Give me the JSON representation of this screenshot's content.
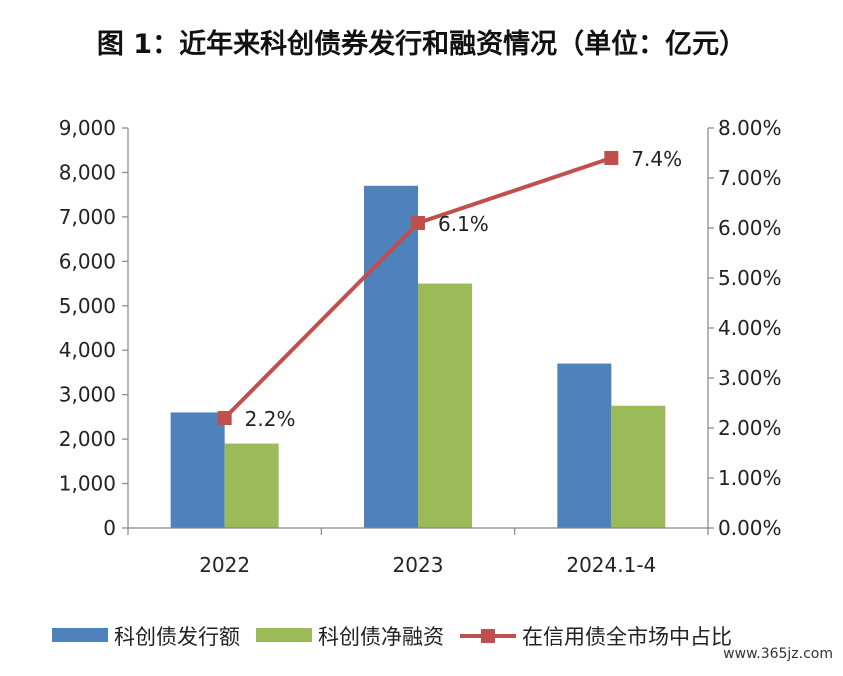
{
  "chart_data": {
    "type": "bar",
    "title": "图 1：近年来科创债券发行和融资情况（单位：亿元）",
    "categories": [
      "2022",
      "2023",
      "2024.1-4"
    ],
    "series": [
      {
        "name": "科创债发行额",
        "type": "bar",
        "axis": "left",
        "color": "#4f81bd",
        "values": [
          2600,
          7700,
          3700
        ]
      },
      {
        "name": "科创债净融资",
        "type": "bar",
        "axis": "left",
        "color": "#9bbb59",
        "values": [
          1900,
          5500,
          2750
        ]
      },
      {
        "name": "在信用债全市场中占比",
        "type": "line",
        "axis": "right",
        "color": "#c0504d",
        "values": [
          0.022,
          0.061,
          0.074
        ],
        "data_labels": [
          "2.2%",
          "6.1%",
          "7.4%"
        ]
      }
    ],
    "y_left": {
      "lim": [
        0,
        9000
      ],
      "ticks": [
        0,
        1000,
        2000,
        3000,
        4000,
        5000,
        6000,
        7000,
        8000,
        9000
      ],
      "tick_labels": [
        "0",
        "1,000",
        "2,000",
        "3,000",
        "4,000",
        "5,000",
        "6,000",
        "7,000",
        "8,000",
        "9,000"
      ]
    },
    "y_right": {
      "lim": [
        0,
        0.08
      ],
      "ticks": [
        0,
        0.01,
        0.02,
        0.03,
        0.04,
        0.05,
        0.06,
        0.07,
        0.08
      ],
      "tick_labels": [
        "0.00%",
        "1.00%",
        "2.00%",
        "3.00%",
        "4.00%",
        "5.00%",
        "6.00%",
        "7.00%",
        "8.00%"
      ]
    },
    "grid": false,
    "legend_position": "bottom"
  },
  "watermark": "www.365jz.com"
}
